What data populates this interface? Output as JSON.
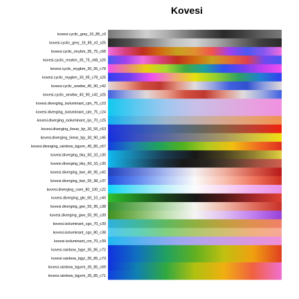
{
  "chart_data": {
    "type": "colormap-gallery",
    "title": "Kovesi",
    "colormaps": [
      {
        "name": "kovesi.cyclic_grey_15_85_c0",
        "colors": [
          "#787878",
          "#a0a0a0",
          "#d0d0d0",
          "#b0b0b0",
          "#808080",
          "#505050",
          "#2a2a2a",
          "#404040",
          "#606060",
          "#787878"
        ]
      },
      {
        "name": "kovesi.cyclic_grey_15_85_c0_s25",
        "colors": [
          "#2a2a2a",
          "#505050",
          "#8a8a8a",
          "#c0c0c0",
          "#d4d4d4",
          "#a8a8a8",
          "#707070",
          "#404040",
          "#2a2a2a"
        ]
      },
      {
        "name": "kovesi.cyclic_mrybm_35_75_c68",
        "colors": [
          "#f06ee0",
          "#d8407e",
          "#c0301e",
          "#d06a10",
          "#c8a020",
          "#e09030",
          "#f05050",
          "#a040f0",
          "#4a58f0",
          "#8a58f0",
          "#f06ee0"
        ]
      },
      {
        "name": "kovesi.cyclic_mrybm_35_75_c68_s25",
        "colors": [
          "#4a58f0",
          "#a040f0",
          "#f06ee0",
          "#d8407e",
          "#c0301e",
          "#d06a10",
          "#c8a020",
          "#e07030",
          "#e04050",
          "#7048f0",
          "#4a58f0"
        ]
      },
      {
        "name": "kovesi.cyclic_mygbm_30_95_c78",
        "colors": [
          "#f050f0",
          "#e88880",
          "#e8d010",
          "#a8d830",
          "#40a840",
          "#20a0a0",
          "#3050f0",
          "#7040f0",
          "#c040f0",
          "#f050f0"
        ]
      },
      {
        "name": "kovesi.cyclic_mygbm_30_95_c78_s25",
        "colors": [
          "#3040f0",
          "#7040f0",
          "#f050f0",
          "#f0a080",
          "#e8e010",
          "#90d030",
          "#30a060",
          "#2080d0",
          "#3040f0"
        ]
      },
      {
        "name": "kovesi.cyclic_wrwbw_40_90_c42",
        "colors": [
          "#e0d8d8",
          "#e8a090",
          "#d05040",
          "#c03830",
          "#e09080",
          "#e0dcdc",
          "#9aa8e0",
          "#4060e0",
          "#3050d0",
          "#90a0e0",
          "#e0d8d8"
        ]
      },
      {
        "name": "kovesi.cyclic_wrwbw_40_90_c42_s25",
        "colors": [
          "#4060e0",
          "#9aa8e0",
          "#e0d8d8",
          "#e8a090",
          "#d05040",
          "#c03830",
          "#e09080",
          "#e0dcdc",
          "#9aa8e0",
          "#4060e0"
        ]
      },
      {
        "name": "kovesi.diverging_isoluminant_cjm_75_c23",
        "colors": [
          "#10c8f0",
          "#60c8f0",
          "#a0c8f0",
          "#c8c0e8",
          "#d8b0e0",
          "#e8a0e0",
          "#f090e0"
        ]
      },
      {
        "name": "kovesi.diverging_isoluminant_cjm_75_c24",
        "colors": [
          "#10c8f0",
          "#60c8f0",
          "#a0c8f0",
          "#c8c0e8",
          "#d8b0e0",
          "#e8a0e0",
          "#f090e0"
        ]
      },
      {
        "name": "kovesi.diverging_isoluminant_cjo_70_c25",
        "colors": [
          "#10b0f0",
          "#60b8e0",
          "#a0b8d0",
          "#c0b0b0",
          "#d8a890",
          "#e8a070",
          "#f09050"
        ]
      },
      {
        "name": "kovesi.diverging_linear_bjr_30_55_c53",
        "colors": [
          "#2030e0",
          "#3050c0",
          "#4a68a0",
          "#606868",
          "#8a6040",
          "#c04030",
          "#f02010"
        ]
      },
      {
        "name": "kovesi.diverging_linear_bjy_30_90_c45",
        "colors": [
          "#1430e0",
          "#3a50c0",
          "#5a6aa0",
          "#808080",
          "#a89860",
          "#d0c040",
          "#f0e010"
        ]
      },
      {
        "name": "kovesi.diverging_rainbow_bgymr_45_85_c67",
        "colors": [
          "#1040e0",
          "#2080b0",
          "#20a060",
          "#50b020",
          "#b0c820",
          "#f0c010",
          "#f07020",
          "#e03020"
        ]
      },
      {
        "name": "kovesi.diverging_bky_60_10_c30",
        "colors": [
          "#10b8f0",
          "#1a7aa0",
          "#1a3a50",
          "#181818",
          "#484020",
          "#908030",
          "#e0d040"
        ]
      },
      {
        "name": "kovesi.diverging_bky_60_10_c30",
        "colors": [
          "#10b8f0",
          "#1a7aa0",
          "#1a3a50",
          "#181818",
          "#282420",
          "#584030",
          "#a05040",
          "#d06050"
        ]
      },
      {
        "name": "kovesi.diverging_bwr_40_95_c42",
        "colors": [
          "#2040c0",
          "#6078d8",
          "#a8b8f0",
          "#f4f0f0",
          "#f0b0a0",
          "#d86050",
          "#b81818"
        ]
      },
      {
        "name": "kovesi.diverging_bwr_55_98_c37",
        "colors": [
          "#2050e0",
          "#6088f0",
          "#b0c8f8",
          "#fafafa",
          "#f8c0b0",
          "#f07860",
          "#d03020"
        ]
      },
      {
        "name": "kovesi.diverging_cwm_80_100_c22",
        "colors": [
          "#10d8f8",
          "#70e0f8",
          "#c0f0fa",
          "#fcfcfc",
          "#f8d8f4",
          "#f0b0ee",
          "#e890e8"
        ]
      },
      {
        "name": "kovesi.diverging_gkr_60_10_c40",
        "colors": [
          "#30c030",
          "#208020",
          "#184018",
          "#181818",
          "#501818",
          "#a02828",
          "#e04030"
        ]
      },
      {
        "name": "kovesi.diverging_gwr_55_95_c38",
        "colors": [
          "#309030",
          "#70b060",
          "#b0d8a8",
          "#f4f4f0",
          "#f0b8a8",
          "#e07060",
          "#c83028"
        ]
      },
      {
        "name": "kovesi.diverging_gwv_55_95_c39",
        "colors": [
          "#409020",
          "#80b860",
          "#c0e0b0",
          "#f4f4f4",
          "#e0c0f0",
          "#c080f0",
          "#9840d8"
        ]
      },
      {
        "name": "kovesi.isoluminant_cgo_70_c39",
        "colors": [
          "#30b0e0",
          "#40b8a0",
          "#60b860",
          "#90b040",
          "#c0a040",
          "#e09050",
          "#f08068"
        ]
      },
      {
        "name": "kovesi.isoluminant_cgo_80_c38",
        "colors": [
          "#50c8f0",
          "#60d0c0",
          "#80d080",
          "#b0c870",
          "#d0c070",
          "#f0b080",
          "#f8a898"
        ]
      },
      {
        "name": "kovesi.isoluminant_cm_70_c39",
        "colors": [
          "#20b8f0",
          "#60b0f0",
          "#9aa8f0",
          "#c0a0e8",
          "#d898e0",
          "#f090d8"
        ]
      },
      {
        "name": "kovesi.rainbow_bgyr_35_85_c72",
        "colors": [
          "#1030e0",
          "#1070c0",
          "#20a060",
          "#60b020",
          "#c0c010",
          "#f0a010",
          "#e04020"
        ]
      },
      {
        "name": "kovesi.rainbow_bgyr_35_85_c73",
        "colors": [
          "#1030e0",
          "#1070c0",
          "#20a060",
          "#60b020",
          "#c0c010",
          "#f0a010",
          "#e04020"
        ]
      },
      {
        "name": "kovesi.rainbow_bgyrm_35_85_c69",
        "colors": [
          "#1030e0",
          "#1080b0",
          "#30a840",
          "#b0c010",
          "#f0b010",
          "#f06040",
          "#f070d0"
        ]
      },
      {
        "name": "kovesi.rainbow_bgyrm_35_85_c71",
        "colors": [
          "#1040e0",
          "#1080b0",
          "#30a840",
          "#b0c010",
          "#f0b010",
          "#f06040",
          "#f070d0"
        ]
      }
    ]
  }
}
